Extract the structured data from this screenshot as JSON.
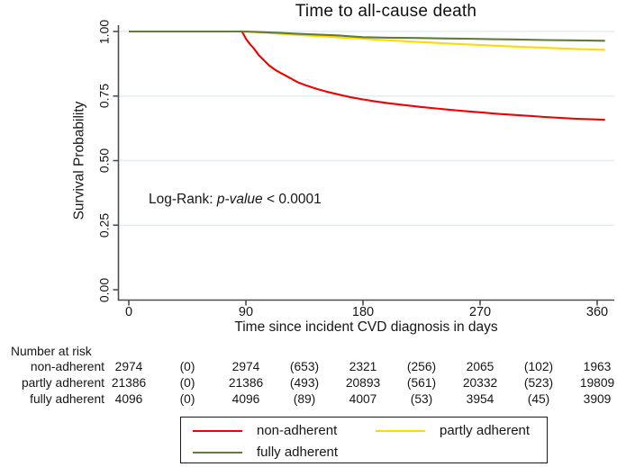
{
  "title": "Time to all-cause death",
  "annotation": {
    "prefix": "Log-Rank: ",
    "italic": "p-value",
    "suffix": " < 0.0001"
  },
  "colors": {
    "non_adherent": "#f40000",
    "partly_adherent": "#ffd900",
    "fully_adherent": "#5e7c3e",
    "gridline": "#e4edf4",
    "axis": "#4d4d4d",
    "legend_border": "#1a1a1a"
  },
  "chart_data": {
    "type": "line",
    "subtype": "kaplan-meier-survival",
    "title": "Time to all-cause death",
    "xlabel": "Time since incident CVD diagnosis in days",
    "ylabel": "Survival Probability",
    "xlim": [
      0,
      373
    ],
    "ylim": [
      0,
      1.0
    ],
    "xticks": [
      0,
      90,
      180,
      270,
      360
    ],
    "ytick_labels": [
      "0.00",
      "0.25",
      "0.50",
      "0.75",
      "1.00"
    ],
    "ytick_values": [
      0,
      0.25,
      0.5,
      0.75,
      1.0
    ],
    "grid": "horizontal",
    "legend_position": "bottom",
    "annotation": "Log-Rank: p-value < 0.0001",
    "series": [
      {
        "name": "non-adherent",
        "color": "#f40000",
        "points": [
          [
            0,
            1.0
          ],
          [
            87,
            1.0
          ],
          [
            90,
            0.972
          ],
          [
            93,
            0.952
          ],
          [
            96,
            0.935
          ],
          [
            100,
            0.908
          ],
          [
            104,
            0.888
          ],
          [
            108,
            0.868
          ],
          [
            113,
            0.85
          ],
          [
            118,
            0.836
          ],
          [
            124,
            0.82
          ],
          [
            130,
            0.803
          ],
          [
            137,
            0.79
          ],
          [
            145,
            0.777
          ],
          [
            153,
            0.766
          ],
          [
            162,
            0.755
          ],
          [
            171,
            0.745
          ],
          [
            180,
            0.737
          ],
          [
            190,
            0.729
          ],
          [
            200,
            0.722
          ],
          [
            212,
            0.715
          ],
          [
            224,
            0.708
          ],
          [
            236,
            0.702
          ],
          [
            248,
            0.696
          ],
          [
            260,
            0.691
          ],
          [
            272,
            0.686
          ],
          [
            284,
            0.681
          ],
          [
            296,
            0.677
          ],
          [
            308,
            0.673
          ],
          [
            320,
            0.669
          ],
          [
            332,
            0.665
          ],
          [
            344,
            0.662
          ],
          [
            356,
            0.66
          ],
          [
            366,
            0.658
          ]
        ]
      },
      {
        "name": "partly adherent",
        "color": "#ffd900",
        "points": [
          [
            0,
            1.0
          ],
          [
            88,
            1.0
          ],
          [
            95,
            0.998
          ],
          [
            105,
            0.995
          ],
          [
            120,
            0.99
          ],
          [
            135,
            0.985
          ],
          [
            150,
            0.981
          ],
          [
            165,
            0.976
          ],
          [
            180,
            0.972
          ],
          [
            195,
            0.967
          ],
          [
            210,
            0.963
          ],
          [
            225,
            0.959
          ],
          [
            240,
            0.955
          ],
          [
            255,
            0.951
          ],
          [
            270,
            0.948
          ],
          [
            285,
            0.944
          ],
          [
            300,
            0.941
          ],
          [
            315,
            0.938
          ],
          [
            330,
            0.935
          ],
          [
            345,
            0.932
          ],
          [
            366,
            0.929
          ]
        ]
      },
      {
        "name": "fully adherent",
        "color": "#5e7c3e",
        "points": [
          [
            0,
            1.0
          ],
          [
            88,
            1.0
          ],
          [
            100,
            0.998
          ],
          [
            115,
            0.995
          ],
          [
            130,
            0.991
          ],
          [
            145,
            0.988
          ],
          [
            160,
            0.985
          ],
          [
            180,
            0.978
          ],
          [
            200,
            0.976
          ],
          [
            220,
            0.975
          ],
          [
            240,
            0.973
          ],
          [
            260,
            0.972
          ],
          [
            280,
            0.97
          ],
          [
            300,
            0.969
          ],
          [
            320,
            0.967
          ],
          [
            340,
            0.966
          ],
          [
            366,
            0.964
          ]
        ]
      }
    ]
  },
  "risk_table": {
    "header": "Number at risk",
    "rows": [
      {
        "label": "non-adherent",
        "values": [
          "2974",
          "(0)",
          "2974",
          "(653)",
          "2321",
          "(256)",
          "2065",
          "(102)",
          "1963"
        ]
      },
      {
        "label": "partly adherent",
        "values": [
          "21386",
          "(0)",
          "21386",
          "(493)",
          "20893",
          "(561)",
          "20332",
          "(523)",
          "19809"
        ]
      },
      {
        "label": "fully adherent",
        "values": [
          "4096",
          "(0)",
          "4096",
          "(89)",
          "4007",
          "(53)",
          "3954",
          "(45)",
          "3909"
        ]
      }
    ]
  },
  "legend": {
    "items": [
      {
        "label": "non-adherent"
      },
      {
        "label": "partly adherent"
      },
      {
        "label": "fully adherent"
      }
    ]
  }
}
